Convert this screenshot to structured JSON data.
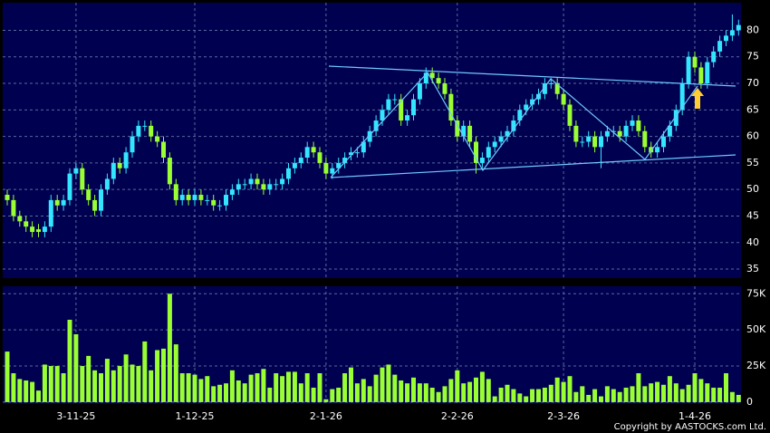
{
  "chart_data": [
    {
      "type": "candlestick",
      "up_color": "#33e5ff",
      "down_color": "#99ff33",
      "open": [
        49,
        48,
        45,
        44,
        43,
        42.5,
        42,
        43,
        48,
        47,
        48,
        53,
        54,
        50,
        48,
        46,
        50,
        52,
        55,
        54,
        57,
        60,
        62,
        62,
        60,
        59,
        56,
        51,
        48,
        49,
        48,
        49,
        48,
        48,
        47,
        47,
        49,
        50,
        51,
        51,
        52,
        51,
        50,
        51,
        51,
        52,
        54,
        55,
        56,
        58,
        57,
        55,
        53,
        54,
        55,
        56.5,
        57,
        57,
        59,
        61,
        63,
        65,
        67,
        67,
        63,
        64,
        67,
        70,
        72,
        71,
        70,
        68,
        63,
        60,
        62,
        59,
        55,
        56,
        58,
        59,
        60,
        61,
        63,
        65,
        66,
        67,
        68,
        70,
        70,
        68,
        66,
        62,
        59,
        59,
        60,
        58,
        60,
        61,
        61,
        60,
        62,
        63,
        61,
        58,
        57,
        58,
        60,
        62,
        65,
        70,
        75,
        73,
        70,
        74,
        76,
        78,
        79,
        80
      ],
      "high": [
        50,
        49,
        46,
        45,
        44,
        43.5,
        44,
        49,
        49,
        49,
        54,
        55,
        55,
        51,
        49,
        51,
        53,
        56,
        56,
        58,
        61,
        63,
        63,
        63,
        61,
        60,
        57,
        52,
        50,
        50,
        50,
        50,
        49,
        49,
        48,
        50,
        51,
        52,
        52,
        53,
        53,
        52,
        52,
        52,
        53,
        55,
        56,
        57,
        59,
        59,
        58,
        56,
        55,
        56,
        57,
        58,
        58,
        60,
        62,
        64,
        66,
        68,
        68,
        68,
        65,
        68,
        71,
        73,
        73,
        72,
        71,
        69,
        64,
        63,
        63,
        60,
        57,
        59,
        60,
        61,
        62,
        64,
        66,
        67,
        68,
        69,
        71,
        71,
        71,
        69,
        67,
        63,
        60,
        61,
        61,
        61,
        62,
        62,
        62,
        63,
        64,
        64,
        62,
        59,
        59,
        61,
        63,
        66,
        71,
        76,
        76,
        74,
        75,
        77,
        79,
        80,
        83,
        82
      ],
      "low": [
        47,
        44,
        43,
        42,
        41,
        41,
        41,
        42,
        46,
        46,
        47,
        52,
        49,
        47,
        45,
        45,
        49,
        51,
        53,
        53,
        56,
        59,
        61,
        59,
        58,
        55,
        50,
        47,
        47,
        47,
        47,
        47,
        47,
        46,
        46,
        46,
        48,
        49,
        50,
        50,
        50,
        49,
        49,
        50,
        50,
        51,
        53,
        54,
        55,
        56,
        54,
        52,
        52,
        53,
        54,
        55.5,
        56,
        56,
        58,
        60,
        62,
        64,
        66,
        62,
        62,
        63,
        66,
        69,
        70,
        69,
        67,
        62,
        59,
        59,
        58,
        53,
        54,
        55,
        57,
        58,
        59,
        60,
        62,
        64,
        65,
        66,
        67,
        69,
        67,
        65,
        61,
        58,
        58,
        58,
        57,
        54,
        59,
        60,
        59,
        59,
        61,
        60,
        57,
        56,
        56,
        57,
        59,
        61,
        64,
        69,
        72,
        69,
        69,
        73,
        75,
        77,
        78,
        79
      ],
      "close": [
        48,
        45,
        44,
        43,
        42,
        42,
        43,
        48,
        47,
        48,
        53,
        54,
        50,
        48,
        46,
        50,
        52,
        55,
        54,
        57,
        60,
        62,
        62,
        60,
        59,
        56,
        51,
        48,
        49,
        48,
        49,
        48,
        48,
        47,
        47,
        49,
        50,
        51,
        51,
        52,
        51,
        50,
        51,
        51,
        52,
        54,
        55,
        56,
        58,
        57,
        55,
        53,
        54,
        55,
        56,
        57,
        57,
        59,
        61,
        63,
        65,
        67,
        67,
        63,
        64,
        67,
        70,
        72,
        71,
        70,
        68,
        63,
        60,
        62,
        59,
        55,
        56,
        58,
        59,
        60,
        61,
        63,
        65,
        66,
        67,
        68,
        70,
        70,
        68,
        66,
        62,
        59,
        59,
        60,
        58,
        60,
        61,
        61,
        60,
        62,
        63,
        61,
        58,
        57,
        58,
        60,
        62,
        65,
        70,
        75,
        73,
        70,
        74,
        76,
        78,
        79,
        80,
        81
      ],
      "ylim": [
        33.3,
        85.2
      ],
      "yticks": [
        35,
        40,
        45,
        50,
        55,
        60,
        65,
        70,
        75,
        80
      ],
      "grid": true
    },
    {
      "type": "bar",
      "color": "#99ff33",
      "categories": [
        null,
        null,
        null,
        null,
        null,
        null,
        null,
        null,
        null,
        null,
        null,
        "3-11-25",
        null,
        null,
        null,
        null,
        null,
        null,
        null,
        null,
        null,
        null,
        null,
        null,
        null,
        null,
        null,
        null,
        null,
        null,
        "1-12-25",
        null,
        null,
        null,
        null,
        null,
        null,
        null,
        null,
        null,
        null,
        null,
        null,
        null,
        null,
        null,
        null,
        null,
        null,
        null,
        null,
        "2-1-26",
        null,
        null,
        null,
        null,
        null,
        null,
        null,
        null,
        null,
        null,
        null,
        null,
        null,
        null,
        null,
        null,
        null,
        null,
        null,
        null,
        "2-2-26",
        null,
        null,
        null,
        null,
        null,
        null,
        null,
        null,
        null,
        null,
        null,
        null,
        null,
        null,
        null,
        null,
        "2-3-26",
        null,
        null,
        null,
        null,
        null,
        null,
        null,
        null,
        null,
        null,
        null,
        null,
        null,
        null,
        null,
        null,
        null,
        null,
        null,
        null,
        "1-4-26",
        null,
        null,
        null,
        null,
        null,
        null,
        null
      ],
      "values": [
        35000,
        20000,
        16000,
        15000,
        14000,
        8000,
        26000,
        25000,
        25000,
        20000,
        57000,
        47000,
        25000,
        32000,
        22000,
        20000,
        30000,
        22000,
        25000,
        33000,
        26000,
        25000,
        42000,
        22000,
        36000,
        37000,
        75000,
        40000,
        20000,
        20000,
        19000,
        16000,
        18000,
        11000,
        12000,
        13000,
        22000,
        15000,
        13000,
        19000,
        20000,
        23000,
        10000,
        20000,
        18000,
        21000,
        21000,
        13000,
        20000,
        10000,
        20000,
        2000,
        9000,
        10000,
        20000,
        24000,
        13000,
        16000,
        11000,
        19000,
        24000,
        26000,
        19000,
        15000,
        13000,
        17000,
        13000,
        13000,
        10000,
        7000,
        11000,
        16000,
        22000,
        13000,
        14000,
        17000,
        21000,
        16000,
        4000,
        10000,
        12000,
        9000,
        6000,
        4000,
        9000,
        9000,
        10000,
        12000,
        17000,
        14000,
        18000,
        7000,
        11000,
        5000,
        9000,
        4000,
        11000,
        9000,
        7000,
        10000,
        11000,
        20000,
        11000,
        13000,
        14000,
        12000,
        18000,
        13000,
        9000,
        12000,
        20000,
        16000,
        13000,
        10000,
        10000,
        20000,
        7000,
        5000
      ],
      "ylim": [
        -1300,
        80200
      ],
      "yticks": [
        0,
        {
          "value": 25000,
          "label": "25K"
        },
        {
          "value": 50000,
          "label": "50K"
        },
        {
          "value": 75000,
          "label": "75K"
        }
      ],
      "grid": true,
      "footer": "Copyright by AASTOCKS.com Ltd."
    }
  ]
}
